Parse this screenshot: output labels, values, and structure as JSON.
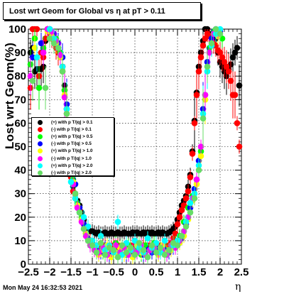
{
  "title": "Lost wrt Geom for Global vs  η at pT > 0.11",
  "timestamp": "Mon May 24 16:32:53 2021",
  "chart_data": {
    "type": "scatter",
    "title": "Lost wrt Geom for Global vs  η at pT > 0.11",
    "xlabel": "η",
    "ylabel": "Lost wrt Geom(%)",
    "xlim": [
      -2.5,
      2.5
    ],
    "ylim": [
      0,
      100
    ],
    "xticks": [
      -2.5,
      -2,
      -1.5,
      -1,
      -0.5,
      0,
      0.5,
      1,
      1.5,
      2,
      2.5
    ],
    "xtick_labels": [
      "−2.5",
      "−2",
      "−1.5",
      "−1",
      "−0.5",
      "0",
      "0.5",
      "1",
      "1.5",
      "2",
      "2.5"
    ],
    "yticks": [
      0,
      10,
      20,
      30,
      40,
      50,
      60,
      70,
      80,
      90,
      100
    ],
    "ytick_labels": [
      "0",
      "10",
      "20",
      "30",
      "40",
      "50",
      "60",
      "70",
      "80",
      "90",
      "100"
    ],
    "grid": true,
    "legend_position": "left-middle",
    "series": [
      {
        "name": "(+) with p T/|q| > 0.1",
        "color": "#000000",
        "x": [
          -2.45,
          -2.4,
          -2.35,
          -2.3,
          -2.25,
          -2.2,
          -2.15,
          -2.1,
          -2.05,
          -2.0,
          -1.95,
          -1.9,
          -1.85,
          -1.8,
          -1.75,
          -1.7,
          -1.65,
          -1.6,
          -1.55,
          -1.5,
          -1.45,
          -1.4,
          -1.35,
          -1.3,
          -1.25,
          -1.2,
          -1.15,
          -1.1,
          -1.05,
          -1.0,
          -0.95,
          -0.9,
          -0.85,
          -0.8,
          -0.75,
          -0.7,
          -0.65,
          -0.6,
          -0.55,
          -0.5,
          -0.45,
          -0.4,
          -0.35,
          -0.3,
          -0.25,
          -0.2,
          -0.15,
          -0.1,
          -0.05,
          0.0,
          0.05,
          0.1,
          0.15,
          0.2,
          0.25,
          0.3,
          0.35,
          0.4,
          0.45,
          0.5,
          0.55,
          0.6,
          0.65,
          0.7,
          0.75,
          0.8,
          0.85,
          0.9,
          0.95,
          1.0,
          1.05,
          1.1,
          1.15,
          1.2,
          1.25,
          1.3,
          1.35,
          1.4,
          1.45,
          1.5,
          1.55,
          1.6,
          1.65,
          1.7,
          1.75,
          1.8,
          1.85,
          1.9,
          1.95,
          2.0,
          2.05,
          2.1,
          2.15,
          2.2,
          2.25,
          2.3,
          2.35,
          2.4,
          2.45
        ],
        "y": [
          90,
          92,
          82,
          83,
          83,
          83,
          84,
          95,
          100,
          100,
          98,
          96,
          93,
          92,
          90,
          84,
          76,
          66,
          48,
          38,
          33,
          30,
          27,
          25,
          22,
          19,
          16,
          15,
          14,
          14,
          13.5,
          13,
          13.5,
          13,
          13,
          13.5,
          13,
          13,
          13.5,
          13,
          13,
          13.5,
          13,
          13,
          13.5,
          13,
          13,
          13,
          13.5,
          13,
          13.5,
          13,
          13,
          13.5,
          13,
          13.5,
          13,
          13.5,
          13,
          13,
          13.5,
          13,
          13.5,
          13,
          13,
          13.5,
          14,
          15,
          16,
          19,
          22,
          25,
          27,
          29,
          33,
          38,
          48,
          61,
          73,
          84,
          90,
          95,
          100,
          100,
          98,
          97,
          95,
          96,
          90,
          86,
          84,
          82,
          80,
          83,
          85,
          88,
          90,
          92,
          76
        ]
      },
      {
        "name": "(-) with p T/|q| > 0.1",
        "color": "#ff0000",
        "x": [
          -2.45,
          -2.4,
          -2.35,
          -2.3,
          -2.25,
          -2.2,
          -2.15,
          -2.1,
          -2.05,
          -2.0,
          -1.95,
          -1.9,
          -1.85,
          -1.8,
          -1.75,
          -1.7,
          -1.65,
          -1.6,
          -1.55,
          -1.5,
          -1.45,
          -1.4,
          -1.35,
          -1.3,
          -1.25,
          -1.2,
          -1.15,
          -1.1,
          -1.05,
          -1.0,
          -0.95,
          -0.9,
          -0.85,
          -0.8,
          -0.75,
          -0.7,
          -0.65,
          -0.6,
          -0.55,
          -0.5,
          -0.45,
          -0.4,
          -0.35,
          -0.3,
          -0.25,
          -0.2,
          -0.15,
          -0.1,
          -0.05,
          0.0,
          0.05,
          0.1,
          0.15,
          0.2,
          0.25,
          0.3,
          0.35,
          0.4,
          0.45,
          0.5,
          0.55,
          0.6,
          0.65,
          0.7,
          0.75,
          0.8,
          0.85,
          0.9,
          0.95,
          1.0,
          1.05,
          1.1,
          1.15,
          1.2,
          1.25,
          1.3,
          1.35,
          1.4,
          1.45,
          1.5,
          1.55,
          1.6,
          1.65,
          1.7,
          1.75,
          1.8,
          1.85,
          1.9,
          1.95,
          2.0,
          2.05,
          2.1,
          2.15,
          2.2,
          2.25,
          2.3,
          2.35,
          2.4,
          2.45
        ],
        "y": [
          75,
          100,
          100,
          100,
          80,
          90,
          88,
          96,
          100,
          98,
          96,
          95,
          92,
          90,
          88,
          82,
          74,
          64,
          47,
          37,
          31,
          28,
          25,
          23,
          20,
          17,
          13,
          11,
          10,
          9,
          8,
          8,
          7,
          8,
          7,
          8,
          7,
          8,
          7,
          8,
          7,
          8,
          7,
          8,
          7,
          8,
          7,
          8,
          7,
          8,
          7,
          8,
          7,
          8,
          7,
          8,
          7,
          8,
          7,
          8,
          7,
          8,
          7,
          8,
          7,
          8,
          9,
          11,
          13,
          17,
          20,
          23,
          25,
          28,
          31,
          37,
          47,
          60,
          72,
          82,
          88,
          93,
          96,
          98,
          97,
          95,
          94,
          93,
          91,
          90,
          88,
          86,
          84,
          82,
          78,
          72,
          72,
          60,
          50
        ]
      },
      {
        "name": "(+) with p T/|q| > 0.5",
        "color": "#00ff00",
        "x": [
          -2.45,
          -2.35,
          -2.25,
          -2.15,
          -2.05,
          -1.95,
          -1.85,
          -1.75,
          -1.65,
          -1.55,
          -1.45,
          -1.35,
          -1.25,
          -1.15,
          -1.05,
          -0.95,
          -0.85,
          -0.75,
          -0.65,
          -0.55,
          -0.45,
          -0.35,
          -0.25,
          -0.15,
          -0.05,
          0.05,
          0.15,
          0.25,
          0.35,
          0.45,
          0.55,
          0.65,
          0.75,
          0.85,
          0.95,
          1.05,
          1.15,
          1.25,
          1.35,
          1.45,
          1.55,
          1.65,
          1.75,
          1.85,
          1.95,
          2.05
        ],
        "y": [
          85,
          96,
          75,
          92,
          100,
          99,
          96,
          90,
          74,
          46,
          36,
          26,
          20,
          13,
          9,
          7,
          6,
          5,
          8,
          5,
          9,
          6,
          4,
          8,
          5,
          7,
          4,
          8,
          6,
          9,
          5,
          7,
          6,
          8,
          9,
          12,
          18,
          24,
          29,
          36,
          48,
          72,
          92,
          99,
          98,
          96
        ]
      },
      {
        "name": "(-) with p T/|q| > 0.5",
        "color": "#0000ff",
        "x": [
          -2.4,
          -2.2,
          -2.0,
          -1.9,
          -1.8,
          -1.7,
          -1.6,
          -1.5,
          -1.4,
          -1.3,
          -1.2,
          -1.1,
          -1.0,
          -0.9,
          -0.8,
          -0.7,
          -0.6,
          -0.5,
          -0.4,
          -0.3,
          -0.2,
          -0.1,
          0.0,
          0.1,
          0.2,
          0.3,
          0.4,
          0.5,
          0.6,
          0.7,
          0.8,
          0.9,
          1.0,
          1.1,
          1.2,
          1.3,
          1.4,
          1.5,
          1.6,
          1.7,
          1.8,
          1.9,
          2.0
        ],
        "y": [
          88,
          94,
          100,
          98,
          94,
          88,
          68,
          44,
          34,
          24,
          17,
          11,
          8,
          6,
          5,
          7,
          4,
          6,
          5,
          7,
          4,
          6,
          5,
          7,
          4,
          6,
          5,
          7,
          5,
          6,
          5,
          7,
          8,
          11,
          17,
          24,
          32,
          44,
          66,
          86,
          96,
          100,
          99
        ]
      },
      {
        "name": "(+) with p T/|q| > 1.0",
        "color": "#ffff00",
        "x": [
          -2.35,
          -2.05,
          -1.95,
          -1.85,
          -1.75,
          -1.65,
          -1.55,
          -1.45,
          -1.35,
          -1.25,
          -1.15,
          -1.05,
          -0.95,
          -0.85,
          -0.75,
          -0.65,
          -0.55,
          -0.45,
          -0.35,
          -0.25,
          -0.15,
          -0.05,
          0.05,
          0.15,
          0.25,
          0.35,
          0.45,
          0.55,
          0.65,
          0.75,
          0.85,
          0.95,
          1.05,
          1.15,
          1.25,
          1.35,
          1.45,
          1.55,
          1.65,
          1.75,
          1.85,
          1.95
        ],
        "y": [
          92,
          99,
          97,
          94,
          88,
          72,
          45,
          35,
          25,
          19,
          13,
          9,
          6,
          4,
          6,
          8,
          3,
          5,
          7,
          4,
          6,
          3,
          8,
          5,
          4,
          6,
          7,
          4,
          8,
          5,
          6,
          7,
          9,
          12,
          19,
          27,
          34,
          46,
          70,
          90,
          98,
          97
        ]
      },
      {
        "name": "(-) with p T/|q| > 1.0",
        "color": "#ff00ff",
        "x": [
          -2.45,
          -2.15,
          -2.05,
          -1.95,
          -1.85,
          -1.75,
          -1.65,
          -1.55,
          -1.45,
          -1.35,
          -1.25,
          -1.15,
          -1.05,
          -0.95,
          -0.85,
          -0.75,
          -0.65,
          -0.55,
          -0.45,
          -0.35,
          -0.25,
          -0.15,
          -0.05,
          0.05,
          0.15,
          0.25,
          0.35,
          0.45,
          0.55,
          0.65,
          0.75,
          0.85,
          0.95,
          1.05,
          1.15,
          1.25,
          1.35,
          1.45,
          1.55,
          1.65,
          1.75,
          1.85,
          1.95
        ],
        "y": [
          80,
          90,
          100,
          99,
          95,
          89,
          71,
          47,
          34,
          24,
          18,
          12,
          8,
          6,
          5,
          7,
          4,
          6,
          8,
          5,
          7,
          4,
          6,
          5,
          8,
          4,
          6,
          7,
          5,
          6,
          4,
          8,
          7,
          10,
          14,
          20,
          28,
          36,
          50,
          72,
          90,
          98,
          99
        ]
      },
      {
        "name": "(+) with p T/|q| > 2.0",
        "color": "#00ffff",
        "x": [
          -2.3,
          -2.0,
          -1.9,
          -1.8,
          -1.7,
          -1.6,
          -1.5,
          -1.4,
          -1.3,
          -1.2,
          -1.1,
          -1.0,
          -0.9,
          -0.8,
          -0.7,
          -0.6,
          -0.5,
          -0.4,
          -0.3,
          -0.2,
          -0.1,
          0.0,
          0.1,
          0.2,
          0.3,
          0.4,
          0.5,
          0.6,
          0.7,
          0.8,
          0.9,
          1.0,
          1.1,
          1.2,
          1.3,
          1.4,
          1.5,
          1.6,
          1.7,
          1.8,
          1.9,
          2.0
        ],
        "y": [
          88,
          100,
          96,
          92,
          84,
          66,
          35,
          28,
          22,
          20,
          16,
          10,
          8,
          12,
          6,
          8,
          5,
          18,
          4,
          9,
          6,
          10,
          7,
          5,
          11,
          7,
          9,
          5,
          10,
          6,
          8,
          10,
          12,
          18,
          26,
          30,
          42,
          64,
          82,
          93,
          98,
          100
        ]
      },
      {
        "name": "(-) with p T/|q| > 2.0",
        "color": "#66dd66",
        "x": [
          -2.4,
          -2.1,
          -2.0,
          -1.9,
          -1.8,
          -1.7,
          -1.6,
          -1.5,
          -1.4,
          -1.3,
          -1.2,
          -1.1,
          -1.0,
          -0.9,
          -0.8,
          -0.7,
          -0.6,
          -0.5,
          -0.4,
          -0.3,
          -0.2,
          -0.1,
          0.0,
          0.1,
          0.2,
          0.3,
          0.4,
          0.5,
          0.6,
          0.7,
          0.8,
          0.9,
          1.0,
          1.1,
          1.2,
          1.3,
          1.4,
          1.5,
          1.6,
          1.7,
          1.8,
          1.9,
          2.0
        ],
        "y": [
          78,
          75,
          96,
          94,
          92,
          82,
          64,
          42,
          30,
          22,
          15,
          10,
          8,
          5,
          9,
          4,
          7,
          6,
          3,
          8,
          5,
          7,
          4,
          9,
          6,
          3,
          8,
          5,
          7,
          4,
          6,
          9,
          8,
          12,
          16,
          22,
          28,
          40,
          62,
          84,
          94,
          100,
          98
        ]
      }
    ]
  }
}
